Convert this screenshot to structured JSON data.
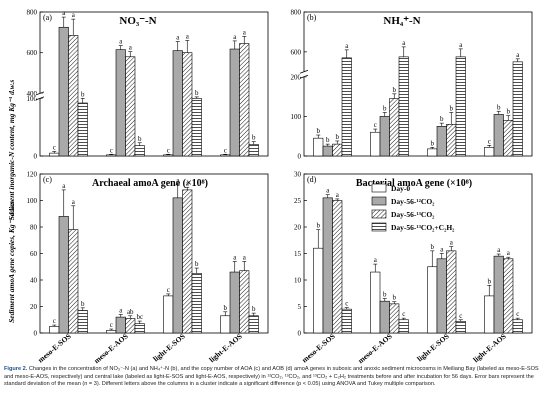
{
  "colors": {
    "day0": "#ffffff",
    "day56_12co2": "#a9a9a9",
    "day56_13co2": "#ffffff",
    "day56_13co2_c2h2": "#ffffff",
    "stroke": "#000000",
    "caption_label": "#1d4e8c"
  },
  "legend": {
    "entries": [
      "Day-0",
      "Day-56-¹²CO₂",
      "Day-56-¹³CO₂",
      "Day-56-¹³CO₂+C₂H₂"
    ],
    "fills": [
      "plain",
      "grey",
      "diagonal",
      "horizontal"
    ],
    "placement": "top-right of panel d"
  },
  "axes": {
    "ylabel_top": "Sediment inorganic-N content, mg Kg⁻¹ d.w.s",
    "ylabel_bottom": "Sediment amoA gene copies, Kg⁻¹ d.w.s",
    "categories": [
      "meso-E-SOS",
      "meso-E-AOS",
      "light-E-SOS",
      "light-E-AOS"
    ]
  },
  "caption": {
    "label": "Figure 2.",
    "text": "Changes in the concentration of NO₃⁻-N (a) and NH₄⁺-N (b), and the copy number of AOA (c) and AOB (d) amoA genes in suboxic and anoxic sediment microcosms in Meiliang Bay (labeled as meso-E-SOS and meso-E-AOS, respectively) and central lake (labeled as light-E-SOS and light-E-AOS, respectively) in ¹²CO₂, ¹³CO₂, and ¹³CO₂ + C₂H₂ treatments before and after incubation for 56 days. Error bars represent the standard deviation of the mean (n = 3). Different letters above the columns in a cluster indicate a significant difference (p < 0.05) using ANOVA and Tukey multiple comparison."
  },
  "chart_data": [
    {
      "panel": "(a)",
      "type": "bar",
      "title": "NO₃⁻-N",
      "axis_break": [
        100,
        400
      ],
      "ylim": [
        0,
        800
      ],
      "yticks": [
        0,
        100,
        400,
        600,
        800
      ],
      "categories": [
        "meso-E-SOS",
        "meso-E-AOS",
        "light-E-SOS",
        "light-E-AOS"
      ],
      "series": [
        {
          "name": "Day-0",
          "values": [
            5,
            2,
            2,
            2
          ],
          "err": [
            3,
            1,
            1,
            1
          ],
          "letters": [
            "c",
            "c",
            "c",
            "c"
          ]
        },
        {
          "name": "Day-56-¹²CO₂",
          "values": [
            725,
            615,
            610,
            618
          ],
          "err": [
            50,
            20,
            45,
            40
          ],
          "letters": [
            "a",
            "a",
            "a",
            "a"
          ]
        },
        {
          "name": "Day-56-¹³CO₂",
          "values": [
            685,
            580,
            600,
            645
          ],
          "err": [
            80,
            25,
            60,
            35
          ],
          "letters": [
            "a",
            "a",
            "a",
            "a"
          ]
        },
        {
          "name": "Day-56-¹³CO₂+C₂H₂",
          "values": [
            92,
            18,
            100,
            20
          ],
          "err": [
            15,
            5,
            90,
            5
          ],
          "letters": [
            "b",
            "b",
            "b",
            "b"
          ]
        }
      ]
    },
    {
      "panel": "(b)",
      "type": "bar",
      "title": "NH₄⁺-N",
      "axis_break": [
        200,
        500
      ],
      "ylim": [
        0,
        800
      ],
      "yticks": [
        0,
        100,
        200,
        600,
        800
      ],
      "categories": [
        "meso-E-SOS",
        "meso-E-AOS",
        "light-E-SOS",
        "light-E-AOS"
      ],
      "series": [
        {
          "name": "Day-0",
          "values": [
            45,
            60,
            18,
            22
          ],
          "err": [
            8,
            8,
            4,
            5
          ],
          "letters": [
            "b",
            "c",
            "b",
            "c"
          ]
        },
        {
          "name": "Day-56-¹²CO₂",
          "values": [
            25,
            100,
            75,
            105
          ],
          "err": [
            5,
            10,
            8,
            8
          ],
          "letters": [
            "b",
            "b",
            "b",
            "b"
          ]
        },
        {
          "name": "Day-56-¹³CO₂",
          "values": [
            30,
            145,
            80,
            90
          ],
          "err": [
            8,
            12,
            30,
            12
          ],
          "letters": [
            "b",
            "b",
            "b",
            "b"
          ]
        },
        {
          "name": "Day-56-¹³CO₂+C₂H₂",
          "values": [
            570,
            575,
            575,
            550
          ],
          "err": [
            40,
            50,
            40,
            15
          ],
          "letters": [
            "a",
            "a",
            "a",
            "a"
          ]
        }
      ]
    },
    {
      "panel": "(c)",
      "type": "bar",
      "title": "Archaeal amoA gene (×10⁸)",
      "ylim": [
        0,
        120
      ],
      "yticks": [
        0,
        20,
        40,
        60,
        80,
        100,
        120
      ],
      "categories": [
        "meso-E-SOS",
        "meso-E-AOS",
        "light-E-SOS",
        "light-E-AOS"
      ],
      "series": [
        {
          "name": "Day-0",
          "values": [
            5,
            2,
            28,
            13
          ],
          "err": [
            1,
            1,
            1.5,
            3
          ],
          "letters": [
            "c",
            "c",
            "c",
            "b"
          ]
        },
        {
          "name": "Day-56-¹²CO₂",
          "values": [
            88,
            12,
            102,
            46
          ],
          "err": [
            20,
            2,
            10,
            8
          ],
          "letters": [
            "a",
            "a",
            "a",
            "a"
          ]
        },
        {
          "name": "Day-56-¹³CO₂",
          "values": [
            78,
            11,
            108,
            47
          ],
          "err": [
            18,
            2,
            2,
            7
          ],
          "letters": [
            "a",
            "ab",
            "a",
            "a"
          ]
        },
        {
          "name": "Day-56-¹³CO₂+C₂H₂",
          "values": [
            17,
            7,
            45,
            13
          ],
          "err": [
            2,
            2,
            4,
            2
          ],
          "letters": [
            "b",
            "bc",
            "b",
            "b"
          ]
        }
      ]
    },
    {
      "panel": "(d)",
      "type": "bar",
      "title": "Bacterial amoA gene (×10⁸)",
      "ylim": [
        0,
        30
      ],
      "yticks": [
        0,
        5,
        10,
        15,
        20,
        25,
        30
      ],
      "categories": [
        "meso-E-SOS",
        "meso-E-AOS",
        "light-E-SOS",
        "light-E-AOS"
      ],
      "series": [
        {
          "name": "Day-0",
          "values": [
            16,
            11.5,
            12.5,
            7
          ],
          "err": [
            3.5,
            1.5,
            3,
            2
          ],
          "letters": [
            "b",
            "a",
            "b",
            "b"
          ]
        },
        {
          "name": "Day-56-¹²CO₂",
          "values": [
            25.5,
            6,
            14,
            14.5
          ],
          "err": [
            0.6,
            0.5,
            1,
            0.4
          ],
          "letters": [
            "a",
            "b",
            "a",
            "a"
          ]
        },
        {
          "name": "Day-56-¹³CO₂",
          "values": [
            25,
            5.5,
            15.5,
            14
          ],
          "err": [
            0.3,
            0.4,
            0.8,
            0.3
          ],
          "letters": [
            "a",
            "b",
            "a",
            "a"
          ]
        },
        {
          "name": "Day-56-¹³CO₂+C₂H₂",
          "values": [
            4.5,
            2.5,
            2.2,
            2.5
          ],
          "err": [
            0.3,
            0.3,
            0.3,
            0.3
          ],
          "letters": [
            "c",
            "c",
            "c",
            "c"
          ]
        }
      ]
    }
  ]
}
